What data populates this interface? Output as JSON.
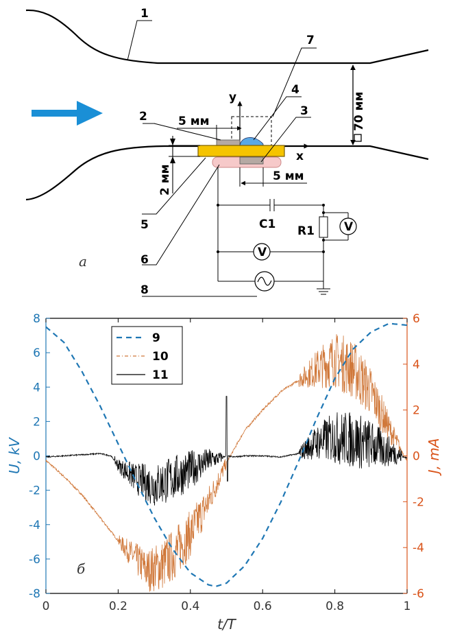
{
  "diagram": {
    "part_labels": [
      "1",
      "2",
      "3",
      "4",
      "5",
      "6",
      "7",
      "8"
    ],
    "dim_70": "70 мм",
    "dim_5a": "5 мм",
    "dim_5b": "5 мм",
    "dim_2": "2 мм",
    "axis_y": "y",
    "axis_x": "x",
    "c1": "C1",
    "r1": "R1",
    "voltmeter": "V",
    "panel_label": "а",
    "colors": {
      "flow_arrow": "#1a8fd6",
      "electrode": "#f5c400",
      "drop": "#5aa8e6",
      "pink": "#f6c9c9"
    }
  },
  "chart_data": {
    "type": "line",
    "panel_label": "б",
    "xlabel": "t/T",
    "ylabel_left": "U, kV",
    "ylabel_right": "J, mA",
    "xlim": [
      0,
      1
    ],
    "ylim_left": [
      -8,
      8
    ],
    "ylim_right": [
      -6,
      6
    ],
    "x_ticks": [
      "0",
      "0.2",
      "0.4",
      "0.6",
      "0.8",
      "1"
    ],
    "y_left_ticks": [
      "-8",
      "-6",
      "-4",
      "-2",
      "0",
      "2",
      "4",
      "6",
      "8"
    ],
    "y_right_ticks": [
      "-6",
      "-4",
      "-2",
      "0",
      "2",
      "4",
      "6"
    ],
    "colors": {
      "left_axis": "#1f77b4",
      "right_axis": "#d95319",
      "series9": "#1f77b4",
      "series10": "#d0783a",
      "series11": "#000000"
    },
    "series": [
      {
        "name": "9",
        "axis": "left",
        "style": "dashed",
        "x": [
          0,
          0.05,
          0.1,
          0.15,
          0.2,
          0.25,
          0.3,
          0.35,
          0.4,
          0.45,
          0.47,
          0.5,
          0.55,
          0.6,
          0.65,
          0.7,
          0.75,
          0.8,
          0.85,
          0.9,
          0.95,
          1.0
        ],
        "y": [
          7.5,
          6.6,
          4.9,
          2.9,
          0.7,
          -1.5,
          -3.6,
          -5.4,
          -6.8,
          -7.5,
          -7.6,
          -7.4,
          -6.4,
          -4.8,
          -2.7,
          -0.3,
          2.2,
          4.5,
          6.2,
          7.2,
          7.7,
          7.6
        ]
      },
      {
        "name": "10",
        "axis": "right",
        "x": [
          0,
          0.05,
          0.1,
          0.15,
          0.2,
          0.25,
          0.28,
          0.32,
          0.36,
          0.4,
          0.45,
          0.5,
          0.55,
          0.6,
          0.65,
          0.7,
          0.75,
          0.8,
          0.85,
          0.9,
          0.95,
          1.0
        ],
        "y": [
          -0.2,
          -0.9,
          -1.7,
          -2.7,
          -3.7,
          -4.5,
          -5.0,
          -4.8,
          -4.2,
          -3.4,
          -2.0,
          -0.3,
          1.1,
          2.0,
          2.8,
          3.3,
          3.8,
          4.2,
          3.8,
          2.8,
          1.2,
          -0.2
        ]
      },
      {
        "name": "11",
        "axis": "right",
        "x": [
          0,
          0.05,
          0.1,
          0.15,
          0.18,
          0.2,
          0.25,
          0.3,
          0.35,
          0.4,
          0.45,
          0.48,
          0.5,
          0.52,
          0.55,
          0.6,
          0.65,
          0.7,
          0.75,
          0.8,
          0.85,
          0.9,
          0.95,
          1.0
        ],
        "y": [
          -0.05,
          0.0,
          0.05,
          0.1,
          0.0,
          -0.4,
          -1.0,
          -1.3,
          -1.0,
          -0.6,
          -0.2,
          -0.1,
          0.0,
          -0.05,
          0.0,
          0.0,
          -0.05,
          0.1,
          0.6,
          0.8,
          0.7,
          0.5,
          0.2,
          -0.1
        ]
      }
    ]
  }
}
